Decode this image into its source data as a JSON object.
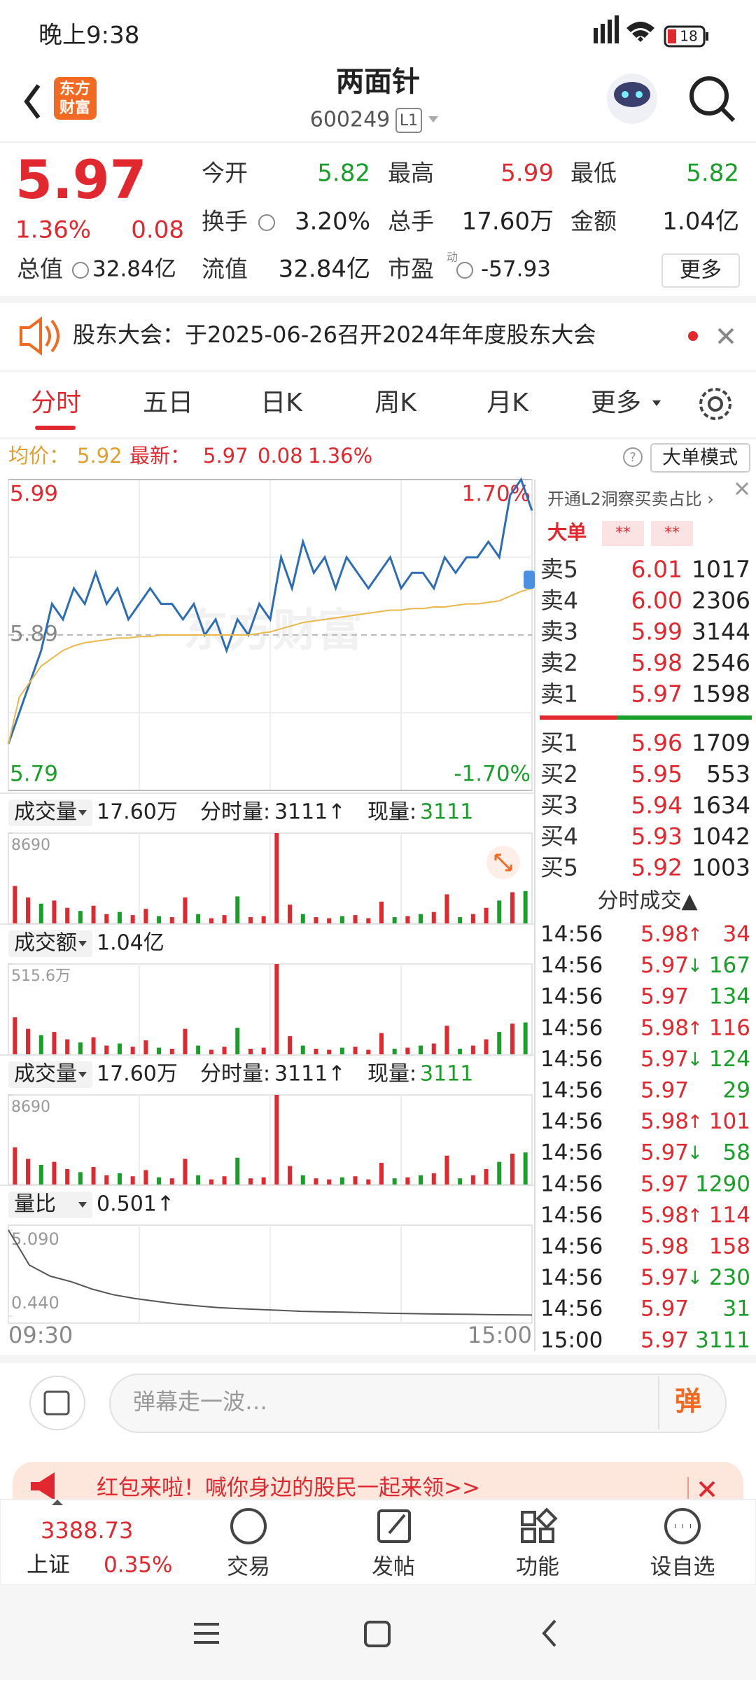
{
  "status_bar": {
    "time": "晚上9:38",
    "battery": "18"
  },
  "header": {
    "logo": [
      "东方",
      "财富"
    ],
    "title": "两面针",
    "code": "600249",
    "level": "L1"
  },
  "quote": {
    "price": "5.97",
    "change_pct": "1.36%",
    "change": "0.08",
    "fields": [
      {
        "label": "今开",
        "value": "5.82",
        "color": "#1a9e2a"
      },
      {
        "label": "最高",
        "value": "5.99",
        "color": "#e0282e"
      },
      {
        "label": "最低",
        "value": "5.82",
        "color": "#1a9e2a"
      },
      {
        "label": "换手",
        "value": "3.20%",
        "color": "#222"
      },
      {
        "label": "总手",
        "value": "17.60万",
        "color": "#222"
      },
      {
        "label": "金额",
        "value": "1.04亿",
        "color": "#222"
      },
      {
        "label": "总值",
        "value": "32.84亿",
        "color": "#222"
      },
      {
        "label": "流值",
        "value": "32.84亿",
        "color": "#222"
      },
      {
        "label": "市盈",
        "value": "-57.93",
        "color": "#222"
      }
    ],
    "pe_note": "动",
    "more": "更多"
  },
  "notice": "股东大会：于2025-06-26召开2024年年度股东大会",
  "tabs": [
    "分时",
    "五日",
    "日K",
    "周K",
    "月K",
    "更多"
  ],
  "info_bar": {
    "avg_label": "均价：",
    "avg": "5.92",
    "last_label": "最新：",
    "last": "5.97",
    "change": "0.08",
    "change_pct": "1.36%",
    "mode": "大单模式"
  },
  "chart_data": [
    {
      "type": "line",
      "ylim": [
        5.79,
        5.99
      ],
      "yticks": [
        5.79,
        5.89,
        5.99
      ],
      "ytick_colors": [
        "#1a9e2a",
        "#888888",
        "#e0282e"
      ],
      "y2lim": [
        -1.7,
        1.7
      ],
      "y2ticks": [
        {
          "value": -1.7,
          "label": "-1.70%"
        },
        {
          "value": 1.7,
          "label": "1.70%"
        }
      ],
      "x_labels": [
        "09:30",
        "15:00"
      ],
      "watermark": "东方财富",
      "series": [
        {
          "color": "#2d6db5",
          "values": [
            5.82,
            5.84,
            5.86,
            5.88,
            5.91,
            5.9,
            5.92,
            5.91,
            5.93,
            5.91,
            5.92,
            5.9,
            5.91,
            5.92,
            5.91,
            5.91,
            5.9,
            5.91,
            5.89,
            5.9,
            5.88,
            5.9,
            5.89,
            5.91,
            5.9,
            5.94,
            5.92,
            5.95,
            5.93,
            5.94,
            5.92,
            5.94,
            5.93,
            5.92,
            5.93,
            5.94,
            5.92,
            5.93,
            5.93,
            5.92,
            5.94,
            5.93,
            5.94,
            5.94,
            5.95,
            5.94,
            5.98,
            5.99,
            5.97
          ]
        },
        {
          "color": "#e8b84a",
          "values": [
            5.82,
            5.85,
            5.86,
            5.87,
            5.875,
            5.88,
            5.883,
            5.885,
            5.886,
            5.887,
            5.888,
            5.888,
            5.889,
            5.889,
            5.89,
            5.89,
            5.89,
            5.89,
            5.89,
            5.89,
            5.89,
            5.89,
            5.89,
            5.891,
            5.892,
            5.894,
            5.896,
            5.898,
            5.899,
            5.9,
            5.901,
            5.902,
            5.903,
            5.904,
            5.905,
            5.906,
            5.906,
            5.907,
            5.907,
            5.908,
            5.908,
            5.909,
            5.91,
            5.91,
            5.911,
            5.912,
            5.915,
            5.918,
            5.92
          ]
        }
      ]
    },
    {
      "type": "bar",
      "title": "成交量",
      "total": "17.60万",
      "tick_label": "分时量:",
      "tick_value": "3111↑",
      "now_label": "现量:",
      "now_value": "3111",
      "ylim": [
        0,
        8690
      ],
      "yticks": [
        8690
      ],
      "values": [
        3600,
        2500,
        1900,
        2200,
        1500,
        1200,
        1700,
        900,
        1100,
        800,
        1400,
        700,
        600,
        2500,
        900,
        500,
        800,
        2600,
        600,
        700,
        8690,
        1800,
        900,
        600,
        500,
        700,
        800,
        500,
        2100,
        600,
        700,
        900,
        1100,
        2800,
        600,
        900,
        1500,
        2200,
        3000,
        3111
      ],
      "colors": [
        "#e0282e",
        "#e0282e",
        "#1a9e2a",
        "#e0282e",
        "#e0282e",
        "#1a9e2a",
        "#e0282e",
        "#e0282e",
        "#1a9e2a",
        "#e0282e",
        "#e0282e",
        "#1a9e2a",
        "#e0282e",
        "#e0282e",
        "#1a9e2a",
        "#e0282e",
        "#e0282e",
        "#1a9e2a",
        "#e0282e",
        "#e0282e",
        "#e0282e",
        "#e0282e",
        "#1a9e2a",
        "#e0282e",
        "#e0282e",
        "#1a9e2a",
        "#e0282e",
        "#e0282e",
        "#e0282e",
        "#1a9e2a",
        "#e0282e",
        "#1a9e2a",
        "#e0282e",
        "#e0282e",
        "#1a9e2a",
        "#e0282e",
        "#e0282e",
        "#1a9e2a",
        "#e0282e",
        "#1a9e2a"
      ]
    },
    {
      "type": "bar",
      "title": "成交额",
      "total": "1.04亿",
      "ylim": [
        0,
        515.6
      ],
      "yticks": [
        {
          "value": 515.6,
          "label": "515.6万"
        }
      ],
      "values": [
        213.5,
        148.3,
        112.7,
        130.5,
        89.0,
        71.2,
        100.8,
        53.4,
        65.2,
        47.4,
        83.0,
        41.5,
        35.6,
        148.3,
        53.4,
        29.7,
        47.4,
        154.2,
        35.6,
        41.5,
        515.6,
        106.7,
        53.4,
        35.6,
        29.7,
        41.5,
        47.4,
        29.7,
        124.5,
        35.6,
        41.5,
        53.4,
        65.2,
        166.0,
        35.6,
        53.4,
        89.0,
        130.5,
        177.9,
        184.5
      ],
      "colors": [
        "#e0282e",
        "#e0282e",
        "#1a9e2a",
        "#e0282e",
        "#e0282e",
        "#1a9e2a",
        "#e0282e",
        "#e0282e",
        "#1a9e2a",
        "#e0282e",
        "#e0282e",
        "#1a9e2a",
        "#e0282e",
        "#e0282e",
        "#1a9e2a",
        "#e0282e",
        "#e0282e",
        "#1a9e2a",
        "#e0282e",
        "#e0282e",
        "#e0282e",
        "#e0282e",
        "#1a9e2a",
        "#e0282e",
        "#e0282e",
        "#1a9e2a",
        "#e0282e",
        "#e0282e",
        "#e0282e",
        "#1a9e2a",
        "#e0282e",
        "#1a9e2a",
        "#e0282e",
        "#e0282e",
        "#1a9e2a",
        "#e0282e",
        "#e0282e",
        "#1a9e2a",
        "#e0282e",
        "#1a9e2a"
      ]
    },
    {
      "type": "line",
      "title": "量比",
      "total": "0.501↑",
      "ylim": [
        0.44,
        5.09
      ],
      "yticks": [
        {
          "value": 0.44,
          "label": "0.440"
        },
        {
          "value": 5.09,
          "label": "5.090"
        }
      ],
      "series": [
        {
          "color": "#555555",
          "values": [
            5.09,
            3.2,
            2.6,
            2.3,
            1.9,
            1.6,
            1.4,
            1.25,
            1.1,
            1.0,
            0.9,
            0.85,
            0.8,
            0.75,
            0.7,
            0.68,
            0.66,
            0.63,
            0.6,
            0.58,
            0.56,
            0.55,
            0.54,
            0.52,
            0.51,
            0.501
          ]
        }
      ]
    }
  ],
  "order_book": {
    "promo": "开通L2洞察买卖占比 ›",
    "big_order": "大单",
    "hidden": [
      "**",
      "**"
    ],
    "asks": [
      {
        "label": "卖5",
        "price": "6.01",
        "volume": "1017"
      },
      {
        "label": "卖4",
        "price": "6.00",
        "volume": "2306"
      },
      {
        "label": "卖3",
        "price": "5.99",
        "volume": "3144"
      },
      {
        "label": "卖2",
        "price": "5.98",
        "volume": "2546"
      },
      {
        "label": "卖1",
        "price": "5.97",
        "volume": "1598"
      }
    ],
    "bids": [
      {
        "label": "买1",
        "price": "5.96",
        "volume": "1709"
      },
      {
        "label": "买2",
        "price": "5.95",
        "volume": "553"
      },
      {
        "label": "买3",
        "price": "5.94",
        "volume": "1634"
      },
      {
        "label": "买4",
        "price": "5.93",
        "volume": "1042"
      },
      {
        "label": "买5",
        "price": "5.92",
        "volume": "1003"
      }
    ]
  },
  "trades": {
    "title": "分时成交▲",
    "rows": [
      {
        "time": "14:56",
        "price": "5.98",
        "dir": "↑",
        "dir_color": "#e0282e",
        "volume": "34",
        "volume_color": "#e0282e"
      },
      {
        "time": "14:56",
        "price": "5.97",
        "dir": "↓",
        "dir_color": "#1a9e2a",
        "volume": "167",
        "volume_color": "#1a9e2a"
      },
      {
        "time": "14:56",
        "price": "5.97",
        "volume": "134",
        "volume_color": "#1a9e2a"
      },
      {
        "time": "14:56",
        "price": "5.98",
        "dir": "↑",
        "dir_color": "#e0282e",
        "volume": "116",
        "volume_color": "#e0282e"
      },
      {
        "time": "14:56",
        "price": "5.97",
        "dir": "↓",
        "dir_color": "#1a9e2a",
        "volume": "124",
        "volume_color": "#1a9e2a"
      },
      {
        "time": "14:56",
        "price": "5.97",
        "volume": "29",
        "volume_color": "#1a9e2a"
      },
      {
        "time": "14:56",
        "price": "5.98",
        "dir": "↑",
        "dir_color": "#e0282e",
        "volume": "101",
        "volume_color": "#e0282e"
      },
      {
        "time": "14:56",
        "price": "5.97",
        "dir": "↓",
        "dir_color": "#1a9e2a",
        "volume": "58",
        "volume_color": "#1a9e2a"
      },
      {
        "time": "14:56",
        "price": "5.97",
        "volume": "1290",
        "volume_color": "#1a9e2a"
      },
      {
        "time": "14:56",
        "price": "5.98",
        "dir": "↑",
        "dir_color": "#e0282e",
        "volume": "114",
        "volume_color": "#e0282e"
      },
      {
        "time": "14:56",
        "price": "5.98",
        "volume": "158",
        "volume_color": "#e0282e"
      },
      {
        "time": "14:56",
        "price": "5.97",
        "dir": "↓",
        "dir_color": "#1a9e2a",
        "volume": "230",
        "volume_color": "#1a9e2a"
      },
      {
        "time": "14:56",
        "price": "5.97",
        "volume": "31",
        "volume_color": "#1a9e2a"
      },
      {
        "time": "15:00",
        "price": "5.97",
        "volume": "3111",
        "volume_color": "#1a9e2a"
      }
    ]
  },
  "comment": {
    "placeholder": "弹幕走一波…",
    "button": "弹"
  },
  "banner": "红包来啦！喊你身边的股民一起来领>>",
  "bottom_nav": {
    "index_value": "3388.73",
    "index_name": "上证",
    "index_pct": "0.35%",
    "items": [
      "交易",
      "发帖",
      "功能",
      "设自选"
    ]
  }
}
